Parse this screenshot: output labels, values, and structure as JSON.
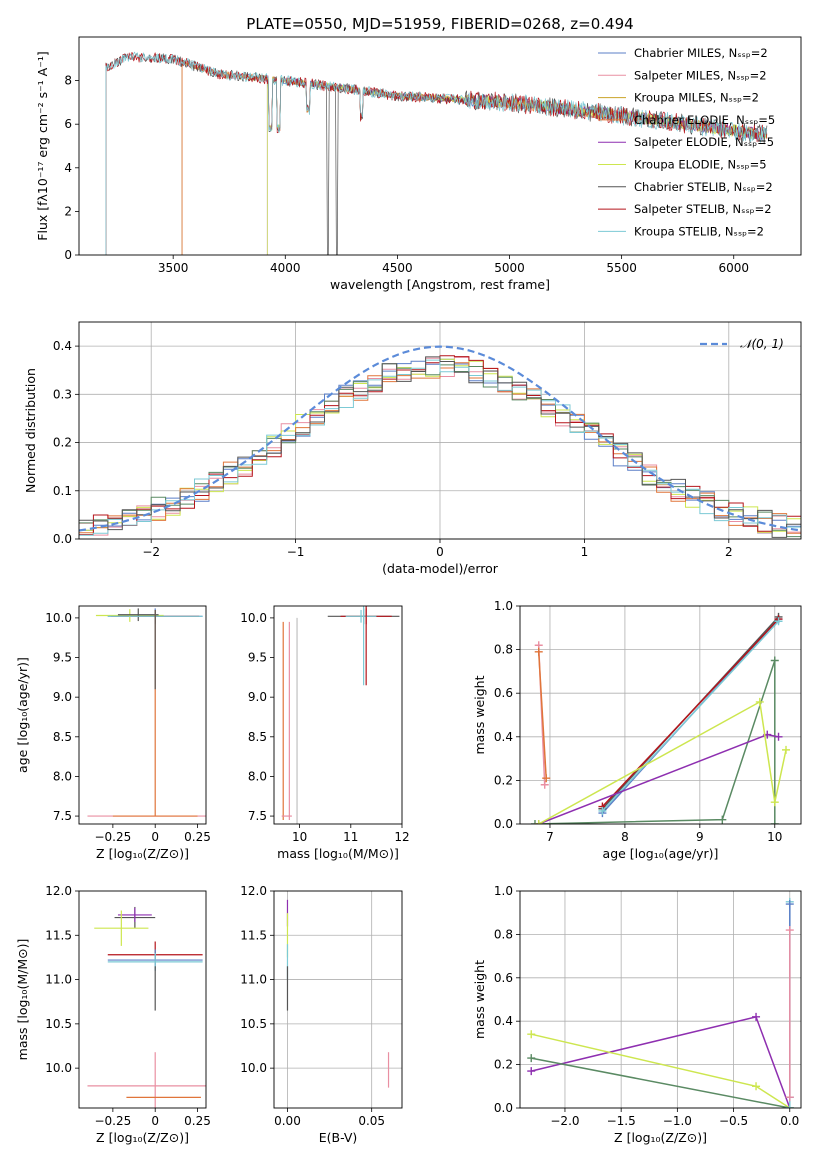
{
  "figure": {
    "title": "PLATE=0550, MJD=51959, FIBERID=0268, z=0.494"
  },
  "colors": {
    "Chabrier MILES": "#5b7fc7",
    "Salpeter MILES": "#e98fa2",
    "Kroupa MILES": "#c9a227",
    "Chabrier ELODIE": "#e0753a",
    "Salpeter ELODIE": "#8e2fb0",
    "Kroupa ELODIE": "#cde64f",
    "Chabrier STELIB": "#555555",
    "Salpeter STELIB": "#b5151b",
    "Kroupa STELIB": "#7ccad5",
    "Chabrier STELIB 2": "#5a8a63",
    "normal": "#5b8bd9"
  },
  "chart_data": [
    {
      "type": "line",
      "xlabel": "wavelength [Angstrom, rest frame]",
      "ylabel": "Flux [fλ10⁻¹⁷ erg cm⁻² s⁻¹ A⁻¹]",
      "xlim": [
        3080,
        6300
      ],
      "ylim": [
        0,
        10
      ],
      "xticks": [
        3500,
        4000,
        4500,
        5000,
        5500,
        6000
      ],
      "yticks": [
        0,
        2,
        4,
        6,
        8
      ],
      "legend_position": "top-right",
      "series": [
        {
          "name": "Chabrier MILES, Nₛₛₚ=2",
          "start": 3540,
          "end": 6150
        },
        {
          "name": "Salpeter MILES, Nₛₛₚ=2",
          "start": 3540,
          "end": 6150
        },
        {
          "name": "Kroupa MILES, Nₛₛₚ=2",
          "start": 3540,
          "end": 6150
        },
        {
          "name": "Chabrier ELODIE, Nₛₛₚ=5",
          "start": 3540,
          "end": 6150
        },
        {
          "name": "Salpeter ELODIE, Nₛₛₚ=5",
          "start": 3920,
          "end": 6150
        },
        {
          "name": "Kroupa ELODIE, Nₛₛₚ=5",
          "start": 3920,
          "end": 6150
        },
        {
          "name": "Chabrier STELIB, Nₛₛₚ=2",
          "start": 3200,
          "end": 6150
        },
        {
          "name": "Salpeter STELIB, Nₛₛₚ=2",
          "start": 3200,
          "end": 6150
        },
        {
          "name": "Kroupa STELIB, Nₛₛₚ=2",
          "start": 3200,
          "end": 6150
        }
      ],
      "continuum": [
        [
          3200,
          8.6
        ],
        [
          3300,
          9.1
        ],
        [
          3500,
          9.0
        ],
        [
          3700,
          8.3
        ],
        [
          4000,
          8.0
        ],
        [
          4300,
          7.6
        ],
        [
          4500,
          7.3
        ],
        [
          5000,
          7.0
        ],
        [
          5500,
          6.4
        ],
        [
          6150,
          5.5
        ]
      ]
    },
    {
      "type": "histogram",
      "xlabel": "(data-model)/error",
      "ylabel": "Normed distribution",
      "xlim": [
        -2.5,
        2.5
      ],
      "ylim": [
        0,
        0.45
      ],
      "xticks": [
        -2,
        -1,
        0,
        1,
        2
      ],
      "yticks": [
        0.0,
        0.1,
        0.2,
        0.3,
        0.4
      ],
      "grid": true,
      "bin_width": 0.1,
      "legend_position": "top-right",
      "reference": {
        "name": "𝒩(0, 1)",
        "mean": 0.0,
        "sigma": 1.0
      }
    },
    {
      "type": "errorbar",
      "xlabel": "Z [log₁₀(Z/Z⊙)]",
      "ylabel": "age  [log₁₀(age/yr)]",
      "xlim": [
        -0.45,
        0.3
      ],
      "ylim": [
        7.4,
        10.15
      ],
      "xticks": [
        -0.25,
        0.0,
        0.25
      ],
      "yticks": [
        7.5,
        8.0,
        8.5,
        9.0,
        9.5,
        10.0
      ],
      "points": [
        {
          "x": 0.0,
          "y": 10.02,
          "xerr": 0.28,
          "yerr": 0.1,
          "color": "#5b7fc7"
        },
        {
          "x": 0.0,
          "y": 10.02,
          "xerr": 0.26,
          "yerr": 0.08,
          "color": "#b5151b"
        },
        {
          "x": -0.15,
          "y": 10.03,
          "xerr": 0.2,
          "yerr": 0.08,
          "color": "#cde64f"
        },
        {
          "x": -0.1,
          "y": 10.04,
          "xerr": 0.12,
          "yerr": 0.08,
          "color": "#555555"
        },
        {
          "x": 0.0,
          "y": 10.02,
          "xerr": 0.28,
          "yerr": 0.08,
          "color": "#7ccad5"
        },
        {
          "x": 0.0,
          "y": 7.5,
          "xerr": 0.4,
          "yerr": 0.0,
          "color": "#e98fa2"
        },
        {
          "x": 0.0,
          "y": 7.5,
          "xerr": 0.25,
          "yerr": 0.0,
          "color": "#e0753a"
        },
        {
          "x": 0.0,
          "y": 8.8,
          "xerr": 0.0,
          "yerr": 1.3,
          "color": "#e0753a"
        },
        {
          "x": 0.0,
          "y": 9.6,
          "xerr": 0.0,
          "yerr": 0.5,
          "color": "#555555"
        }
      ]
    },
    {
      "type": "errorbar",
      "xlabel": "mass [log₁₀(M/M⊙)]",
      "xlim": [
        9.5,
        12.0
      ],
      "ylim": [
        7.4,
        10.15
      ],
      "xticks": [
        10,
        11,
        12
      ],
      "yticks": [
        7.5,
        8.0,
        8.5,
        9.0,
        9.5,
        10.0
      ],
      "points": [
        {
          "x": 11.25,
          "y": 10.02,
          "xerr": 0.7,
          "yerr": 0.1,
          "color": "#555555"
        },
        {
          "x": 11.3,
          "y": 10.02,
          "xerr": 0.5,
          "yerr": 0.1,
          "color": "#b5151b"
        },
        {
          "x": 11.2,
          "y": 10.02,
          "xerr": 0.3,
          "yerr": 0.08,
          "color": "#7ccad5"
        },
        {
          "x": 11.3,
          "y": 9.65,
          "xerr": 0.0,
          "yerr": 0.5,
          "color": "#b5151b"
        },
        {
          "x": 11.25,
          "y": 9.65,
          "xerr": 0.0,
          "yerr": 0.5,
          "color": "#7ccad5"
        },
        {
          "x": 9.68,
          "y": 8.7,
          "xerr": 0.0,
          "yerr": 1.25,
          "color": "#e0753a"
        },
        {
          "x": 9.8,
          "y": 8.7,
          "xerr": 0.0,
          "yerr": 1.25,
          "color": "#e98fa2"
        },
        {
          "x": 9.75,
          "y": 7.5,
          "xerr": 0.1,
          "yerr": 0.0,
          "color": "#e98fa2"
        },
        {
          "x": 9.95,
          "y": 8.7,
          "xerr": 0.0,
          "yerr": 1.3,
          "color": "#c0c0c0"
        }
      ]
    },
    {
      "type": "line",
      "xlabel": "age  [log₁₀(age/yr)]",
      "ylabel": "mass weight",
      "xlim": [
        6.6,
        10.35
      ],
      "ylim": [
        0,
        1.0
      ],
      "xticks": [
        7,
        8,
        9,
        10
      ],
      "yticks": [
        0.0,
        0.2,
        0.4,
        0.6,
        0.8,
        1.0
      ],
      "grid": true,
      "series": [
        {
          "color": "#5b7fc7",
          "x": [
            7.7,
            10.05
          ],
          "y": [
            0.05,
            0.94
          ]
        },
        {
          "color": "#555555",
          "x": [
            7.7,
            10.05
          ],
          "y": [
            0.07,
            0.95
          ]
        },
        {
          "color": "#b5151b",
          "x": [
            7.7,
            10.05
          ],
          "y": [
            0.08,
            0.94
          ]
        },
        {
          "color": "#7ccad5",
          "x": [
            7.7,
            10.05
          ],
          "y": [
            0.06,
            0.93
          ]
        },
        {
          "color": "#5a8a63",
          "x": [
            6.8,
            9.3,
            10.0,
            10.0
          ],
          "y": [
            0.0,
            0.02,
            0.75,
            0.0
          ]
        },
        {
          "color": "#8e2fb0",
          "x": [
            6.85,
            9.9,
            10.05
          ],
          "y": [
            0.0,
            0.41,
            0.4
          ]
        },
        {
          "color": "#cde64f",
          "x": [
            6.85,
            9.8,
            10.0,
            10.15
          ],
          "y": [
            0.0,
            0.56,
            0.1,
            0.34
          ]
        },
        {
          "color": "#e98fa2",
          "x": [
            6.85,
            6.93
          ],
          "y": [
            0.82,
            0.18
          ]
        },
        {
          "color": "#e0753a",
          "x": [
            6.85,
            6.95
          ],
          "y": [
            0.79,
            0.21
          ]
        }
      ]
    },
    {
      "type": "errorbar",
      "xlabel": "Z [log₁₀(Z/Z⊙)]",
      "ylabel": "mass [log₁₀(M/M⊙)]",
      "xlim": [
        -0.45,
        0.3
      ],
      "ylim": [
        9.55,
        12.0
      ],
      "xticks": [
        -0.25,
        0.0,
        0.25
      ],
      "yticks": [
        10.0,
        10.5,
        11.0,
        11.5,
        12.0
      ],
      "points": [
        {
          "x": -0.12,
          "y": 11.7,
          "xerr": 0.12,
          "yerr": 0.12,
          "color": "#555555"
        },
        {
          "x": -0.12,
          "y": 11.73,
          "xerr": 0.1,
          "yerr": 0.08,
          "color": "#8e2fb0"
        },
        {
          "x": -0.2,
          "y": 11.58,
          "xerr": 0.16,
          "yerr": 0.2,
          "color": "#cde64f"
        },
        {
          "x": 0.0,
          "y": 11.28,
          "xerr": 0.28,
          "yerr": 0.15,
          "color": "#b5151b"
        },
        {
          "x": 0.0,
          "y": 11.22,
          "xerr": 0.28,
          "yerr": 0.12,
          "color": "#5b7fc7"
        },
        {
          "x": 0.0,
          "y": 11.2,
          "xerr": 0.28,
          "yerr": 0.1,
          "color": "#7ccad5"
        },
        {
          "x": 0.0,
          "y": 10.9,
          "xerr": 0.0,
          "yerr": 0.25,
          "color": "#555555"
        },
        {
          "x": 0.0,
          "y": 9.8,
          "xerr": 0.4,
          "yerr": 0.38,
          "color": "#e98fa2"
        },
        {
          "x": 0.05,
          "y": 9.67,
          "xerr": 0.22,
          "yerr": 0.0,
          "color": "#e0753a"
        }
      ]
    },
    {
      "type": "errorbar",
      "xlabel": "E(B-V)",
      "xlim": [
        -0.008,
        0.068
      ],
      "ylim": [
        9.55,
        12.0
      ],
      "xticks": [
        0.0,
        0.05
      ],
      "yticks": [
        10.0,
        10.5,
        11.0,
        11.5,
        12.0
      ],
      "grid": true,
      "points": [
        {
          "x": 0.0,
          "y": 11.75,
          "xerr": 0.0,
          "yerr": 0.15,
          "color": "#8e2fb0"
        },
        {
          "x": 0.0,
          "y": 11.5,
          "xerr": 0.0,
          "yerr": 0.25,
          "color": "#cde64f"
        },
        {
          "x": 0.0,
          "y": 11.2,
          "xerr": 0.0,
          "yerr": 0.2,
          "color": "#7ccad5"
        },
        {
          "x": 0.0,
          "y": 10.9,
          "xerr": 0.0,
          "yerr": 0.25,
          "color": "#555555"
        },
        {
          "x": 0.06,
          "y": 9.98,
          "xerr": 0.0,
          "yerr": 0.2,
          "color": "#e98fa2"
        }
      ]
    },
    {
      "type": "line",
      "xlabel": "Z [log₁₀(Z/Z⊙)]",
      "ylabel": "mass weight",
      "xlim": [
        -2.4,
        0.1
      ],
      "ylim": [
        0,
        1.0
      ],
      "xticks": [
        -2.0,
        -1.5,
        -1.0,
        -0.5,
        0.0
      ],
      "yticks": [
        0.0,
        0.2,
        0.4,
        0.6,
        0.8,
        1.0
      ],
      "grid": true,
      "series": [
        {
          "color": "#8e2fb0",
          "x": [
            -2.3,
            -0.3,
            0.0
          ],
          "y": [
            0.17,
            0.42,
            0.0
          ]
        },
        {
          "color": "#cde64f",
          "x": [
            -2.3,
            -0.3,
            0.0
          ],
          "y": [
            0.34,
            0.1,
            0.0
          ]
        },
        {
          "color": "#5a8a63",
          "x": [
            -2.3,
            0.0
          ],
          "y": [
            0.23,
            0.0
          ]
        },
        {
          "color": "#7ccad5",
          "x": [
            0.0,
            0.0
          ],
          "y": [
            0.0,
            0.95
          ]
        },
        {
          "color": "#5b7fc7",
          "x": [
            0.0,
            0.0
          ],
          "y": [
            0.05,
            0.94
          ]
        },
        {
          "color": "#e98fa2",
          "x": [
            0.0,
            0.0
          ],
          "y": [
            0.05,
            0.82
          ]
        }
      ]
    }
  ]
}
